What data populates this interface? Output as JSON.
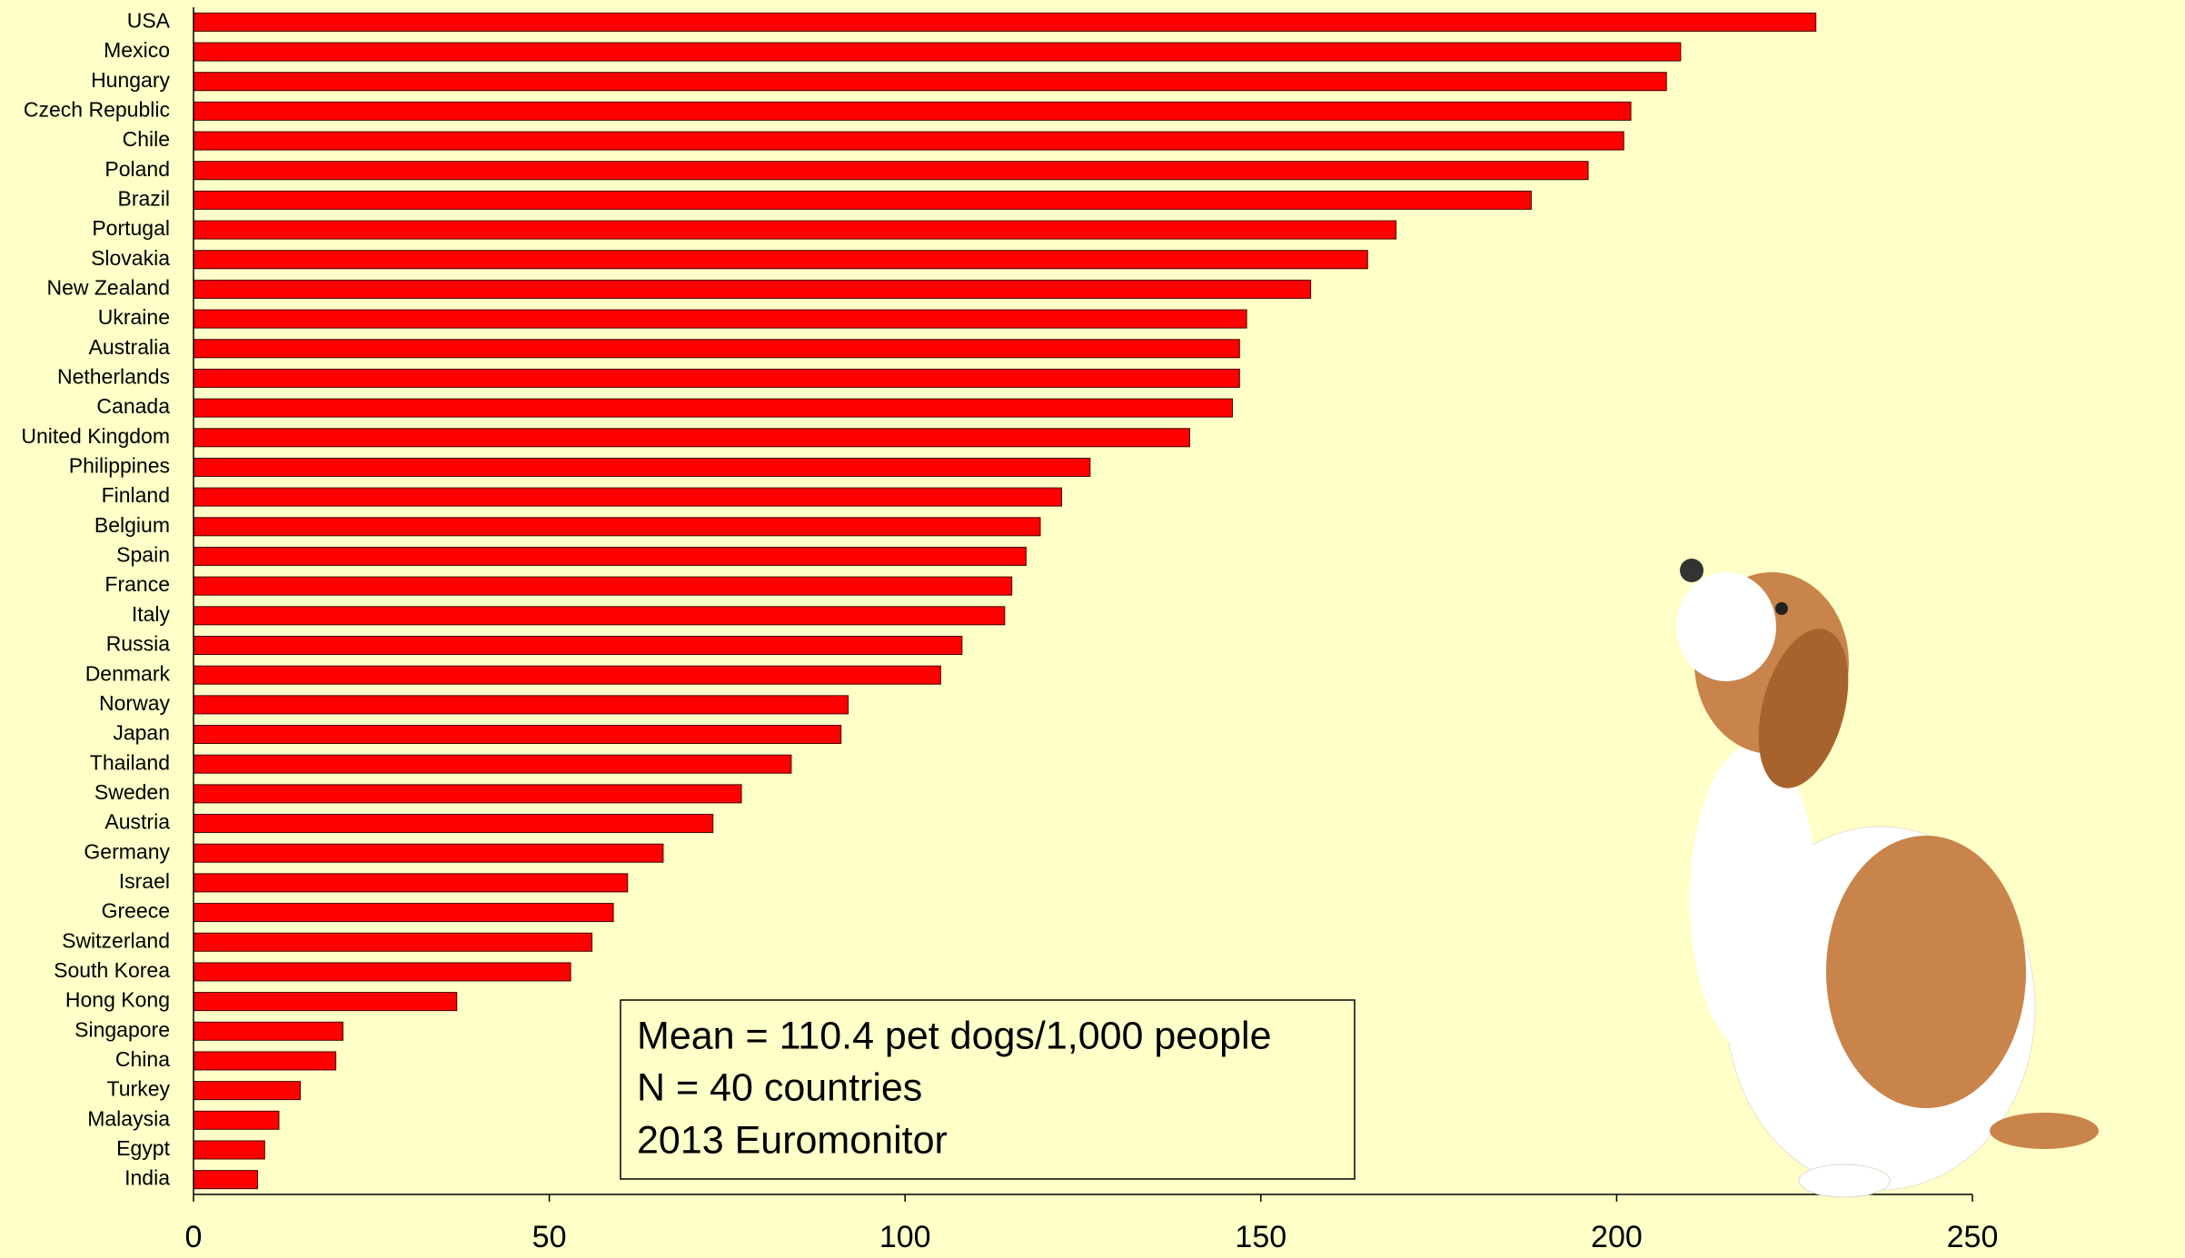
{
  "chart_data": {
    "type": "barh",
    "categories": [
      "USA",
      "Mexico",
      "Hungary",
      "Czech Republic",
      "Chile",
      "Poland",
      "Brazil",
      "Portugal",
      "Slovakia",
      "New Zealand",
      "Ukraine",
      "Australia",
      "Netherlands",
      "Canada",
      "United Kingdom",
      "Philippines",
      "Finland",
      "Belgium",
      "Spain",
      "France",
      "Italy",
      "Russia",
      "Denmark",
      "Norway",
      "Japan",
      "Thailand",
      "Sweden",
      "Austria",
      "Germany",
      "Israel",
      "Greece",
      "Switzerland",
      "South Korea",
      "Hong Kong",
      "Singapore",
      "China",
      "Turkey",
      "Malaysia",
      "Egypt",
      "India"
    ],
    "values": [
      228,
      209,
      207,
      202,
      201,
      196,
      188,
      169,
      165,
      157,
      148,
      147,
      147,
      146,
      140,
      126,
      122,
      119,
      117,
      115,
      114,
      108,
      105,
      92,
      91,
      84,
      77,
      73,
      66,
      61,
      59,
      56,
      53,
      37,
      21,
      20,
      15,
      12,
      10,
      9
    ],
    "color": "#ff0000",
    "xlim": [
      0,
      250
    ],
    "xticks": [
      0,
      50,
      100,
      150,
      200,
      250
    ],
    "annotations": [
      "Mean = 110.4 pet dogs/1,000 people",
      "N = 40 countries",
      "2013 Euromonitor"
    ]
  }
}
